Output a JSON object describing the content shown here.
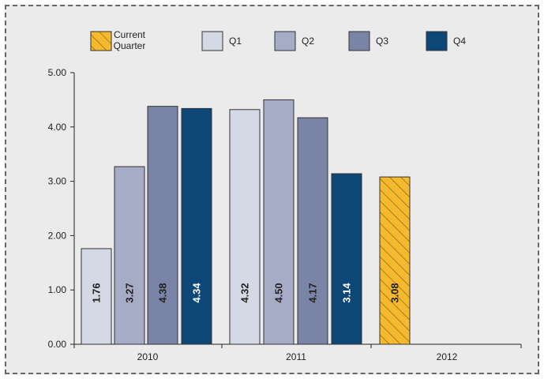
{
  "chart_data": {
    "type": "bar",
    "categories": [
      "2010",
      "2011",
      "2012"
    ],
    "series": [
      {
        "name": "Q1",
        "values": [
          1.76,
          4.32,
          null
        ],
        "color": "#d5d9e5"
      },
      {
        "name": "Q2",
        "values": [
          3.27,
          4.5,
          null
        ],
        "color": "#a6acc6"
      },
      {
        "name": "Q3",
        "values": [
          4.38,
          4.17,
          null
        ],
        "color": "#7a84a7"
      },
      {
        "name": "Q4",
        "values": [
          4.34,
          3.14,
          null
        ],
        "color": "#0d4778"
      },
      {
        "name": "Current Quarter",
        "values": [
          null,
          null,
          3.08
        ],
        "color": "#f5b82e",
        "pattern": "hatched"
      }
    ],
    "data_labels": {
      "2010": [
        "1.76",
        "3.27",
        "4.38",
        "4.34"
      ],
      "2011": [
        "4.32",
        "4.50",
        "4.17",
        "3.14"
      ],
      "2012": [
        "3.08"
      ]
    },
    "ylim": [
      0,
      5
    ],
    "yticks": [
      "0.00",
      "1.00",
      "2.00",
      "3.00",
      "4.00",
      "5.00"
    ],
    "legend": {
      "position": "top",
      "entries": [
        {
          "label_line1": "Current",
          "label_line2": "Quarter",
          "series": "Current Quarter"
        },
        {
          "label": "Q1",
          "series": "Q1"
        },
        {
          "label": "Q2",
          "series": "Q2"
        },
        {
          "label": "Q3",
          "series": "Q3"
        },
        {
          "label": "Q4",
          "series": "Q4"
        }
      ]
    },
    "grid": false
  }
}
